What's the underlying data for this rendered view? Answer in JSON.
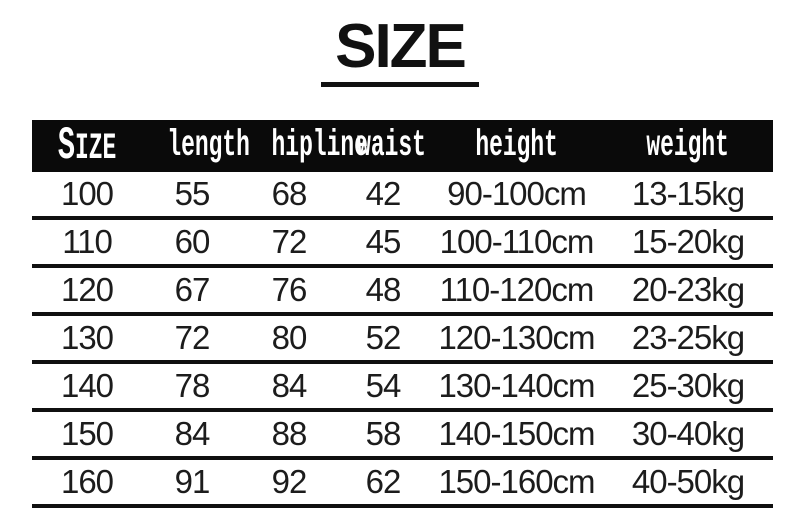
{
  "title": "SIZE",
  "colors": {
    "background": "#ffffff",
    "header_bg": "#0a0a0a",
    "header_text": "#ffffff",
    "row_text": "#1c1c1c",
    "rule_line": "#101010",
    "title_text": "#111111"
  },
  "chart_data": {
    "type": "table",
    "title": "SIZE",
    "columns": [
      "SIZE",
      "length",
      "hipline",
      "waist",
      "height",
      "weight"
    ],
    "rows": [
      [
        "100",
        "55",
        "68",
        "42",
        "90-100cm",
        "13-15kg"
      ],
      [
        "110",
        "60",
        "72",
        "45",
        "100-110cm",
        "15-20kg"
      ],
      [
        "120",
        "67",
        "76",
        "48",
        "110-120cm",
        "20-23kg"
      ],
      [
        "130",
        "72",
        "80",
        "52",
        "120-130cm",
        "23-25kg"
      ],
      [
        "140",
        "78",
        "84",
        "54",
        "130-140cm",
        "25-30kg"
      ],
      [
        "150",
        "84",
        "88",
        "58",
        "140-150cm",
        "30-40kg"
      ],
      [
        "160",
        "91",
        "92",
        "62",
        "150-160cm",
        "40-50kg"
      ]
    ],
    "layout": {
      "header_style": "white-on-black",
      "row_separator": "thick-black-line",
      "grid_vertical_lines": false
    }
  }
}
